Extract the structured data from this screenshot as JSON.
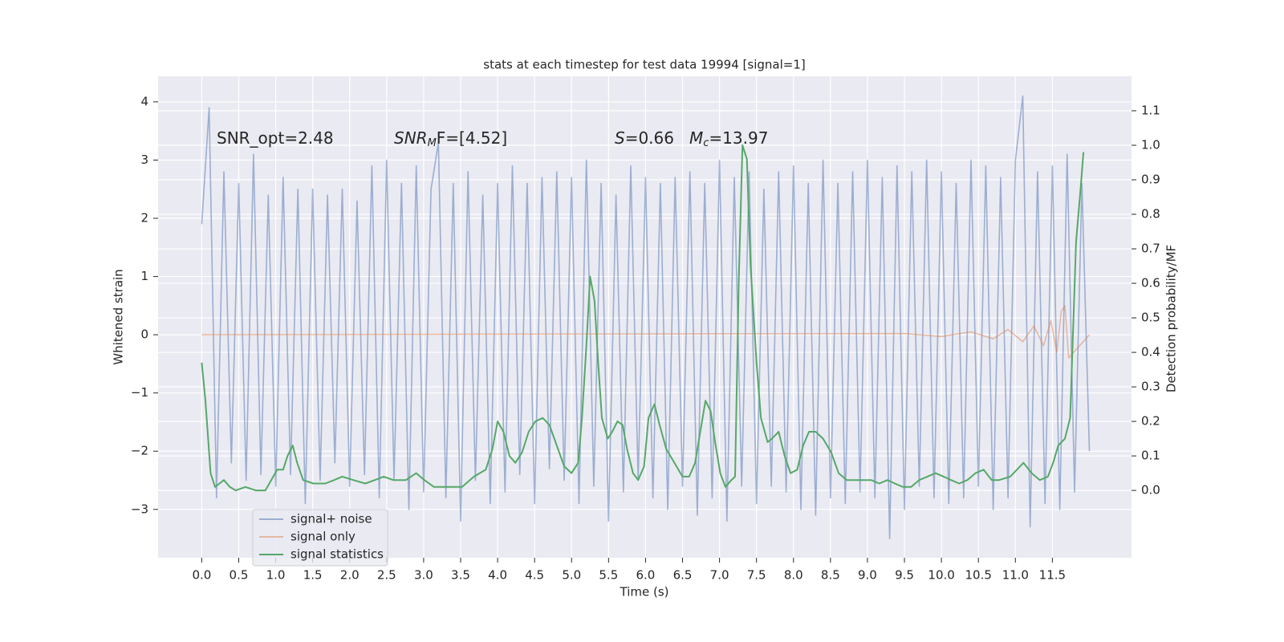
{
  "chart_data": {
    "type": "line",
    "title": "stats at each timestep for test data 19994 [signal=1]",
    "x_label": "Time (s)",
    "y_label": "Whitened strain",
    "y2_label": "Detection probability/MF",
    "annotations": [
      [
        "SNR_opt=2.48"
      ],
      [
        "SNR",
        "M",
        "F=[4.52]"
      ],
      [
        "S",
        "=0.66"
      ],
      [
        "M",
        "c",
        "=13.97"
      ]
    ],
    "xlim": [
      -0.59,
      12.57
    ],
    "ylim": [
      -3.83,
      4.44
    ],
    "y2lim": [
      -0.195,
      1.2
    ],
    "xticks": [
      {
        "value": 0,
        "label": "0.0"
      },
      0.5,
      {
        "value": 1,
        "label": "1.0"
      },
      1.5,
      {
        "value": 2,
        "label": "2.0"
      },
      2.5,
      {
        "value": 3,
        "label": "3.0"
      },
      3.5,
      {
        "value": 4,
        "label": "4.0"
      },
      4.5,
      {
        "value": 5,
        "label": "5.0"
      },
      5.5,
      {
        "value": 6,
        "label": "6.0"
      },
      6.5,
      {
        "value": 7,
        "label": "7.0"
      },
      7.5,
      {
        "value": 8,
        "label": "8.0"
      },
      8.5,
      {
        "value": 9,
        "label": "9.0"
      },
      9.5,
      {
        "value": 10,
        "label": "10.0"
      },
      10.5,
      {
        "value": 11,
        "label": "11.0"
      },
      11.5
    ],
    "yticks": [
      {
        "value": -3,
        "label": "−3"
      },
      {
        "value": -2,
        "label": "−2"
      },
      {
        "value": -1,
        "label": "−1"
      },
      0,
      1,
      2,
      3,
      4
    ],
    "y2ticks": [
      {
        "value": 0,
        "label": "0.0"
      },
      0.1,
      0.2,
      0.3,
      0.4,
      0.5,
      0.6,
      0.7,
      0.8,
      0.9,
      {
        "value": 1,
        "label": "1.0"
      },
      1.1
    ],
    "grid": true,
    "legend": "lower left",
    "series": [
      {
        "name": "signal+ noise",
        "color": "#4c72b0",
        "opacity": 0.5,
        "x": [
          0.0,
          0.1,
          0.2,
          0.3,
          0.4,
          0.5,
          0.6,
          0.7,
          0.8,
          0.9,
          1.0,
          1.1,
          1.2,
          1.3,
          1.4,
          1.5,
          1.6,
          1.7,
          1.8,
          1.9,
          2.0,
          2.1,
          2.2,
          2.3,
          2.4,
          2.5,
          2.6,
          2.7,
          2.8,
          2.9,
          3.0,
          3.1,
          3.2,
          3.3,
          3.4,
          3.5,
          3.6,
          3.7,
          3.8,
          3.9,
          4.0,
          4.1,
          4.2,
          4.3,
          4.4,
          4.5,
          4.6,
          4.7,
          4.8,
          4.9,
          5.0,
          5.1,
          5.2,
          5.3,
          5.4,
          5.5,
          5.6,
          5.7,
          5.8,
          5.9,
          6.0,
          6.1,
          6.2,
          6.3,
          6.4,
          6.5,
          6.6,
          6.7,
          6.8,
          6.9,
          7.0,
          7.1,
          7.2,
          7.3,
          7.4,
          7.5,
          7.6,
          7.7,
          7.8,
          7.9,
          8.0,
          8.1,
          8.2,
          8.3,
          8.4,
          8.5,
          8.6,
          8.7,
          8.8,
          8.9,
          9.0,
          9.1,
          9.2,
          9.3,
          9.4,
          9.5,
          9.6,
          9.7,
          9.8,
          9.9,
          10.0,
          10.1,
          10.2,
          10.3,
          10.4,
          10.5,
          10.6,
          10.7,
          10.8,
          10.9,
          11.0,
          11.1,
          11.2,
          11.3,
          11.4,
          11.5,
          11.6,
          11.7,
          11.8,
          11.9,
          12.0
        ],
        "values": [
          1.9,
          3.9,
          -2.8,
          2.8,
          -2.2,
          2.6,
          -2.5,
          3.1,
          -2.4,
          2.4,
          -2.6,
          2.7,
          -2.4,
          2.5,
          -2.9,
          2.5,
          -2.5,
          2.4,
          -2.2,
          2.5,
          -2.6,
          2.3,
          -2.4,
          2.9,
          -2.8,
          3.0,
          -2.5,
          2.6,
          -3.0,
          2.9,
          -2.7,
          2.5,
          3.3,
          -2.8,
          2.6,
          -3.2,
          2.8,
          -2.5,
          2.4,
          -2.9,
          2.6,
          -2.7,
          2.9,
          -2.4,
          2.6,
          -2.9,
          2.7,
          -2.3,
          2.8,
          -2.5,
          2.7,
          -2.9,
          3.0,
          -2.6,
          2.6,
          -3.2,
          2.4,
          -2.7,
          2.9,
          -2.5,
          2.7,
          -2.8,
          2.6,
          -3.0,
          2.7,
          -2.6,
          2.8,
          -3.1,
          2.6,
          -2.8,
          3.0,
          -3.2,
          2.7,
          -2.6,
          2.8,
          -2.9,
          2.5,
          -2.6,
          2.8,
          -2.7,
          2.9,
          -3.0,
          2.6,
          -3.1,
          3.0,
          -2.8,
          2.6,
          -2.9,
          2.8,
          -2.7,
          3.0,
          -2.8,
          2.7,
          -3.5,
          2.9,
          -3.0,
          2.8,
          -2.6,
          3.0,
          -2.8,
          2.8,
          -2.9,
          2.6,
          -2.8,
          3.0,
          -2.6,
          2.9,
          -3.0,
          2.7,
          -2.8,
          3.0,
          4.1,
          -3.3,
          2.8,
          -2.9,
          2.9,
          -3.0,
          3.1,
          -2.7,
          2.6,
          -2.0
        ]
      },
      {
        "name": "signal only",
        "color": "#dd8452",
        "opacity": 0.5,
        "x": [
          0.0,
          9.5,
          10.0,
          10.4,
          10.7,
          10.9,
          11.1,
          11.25,
          11.38,
          11.48,
          11.56,
          11.62,
          11.67,
          11.72,
          12.0
        ],
        "values": [
          0,
          0.02,
          -0.03,
          0.05,
          -0.07,
          0.09,
          -0.12,
          0.15,
          -0.19,
          0.24,
          -0.3,
          0.4,
          0.5,
          -0.4,
          0
        ]
      },
      {
        "name": "signal statistics",
        "color": "#55a868",
        "opacity": 1,
        "axis": "y2",
        "x": [
          0.0,
          0.05,
          0.12,
          0.18,
          0.24,
          0.3,
          0.38,
          0.46,
          0.59,
          0.73,
          0.86,
          0.94,
          1.02,
          1.1,
          1.16,
          1.23,
          1.29,
          1.37,
          1.51,
          1.67,
          1.79,
          1.9,
          2.05,
          2.21,
          2.34,
          2.46,
          2.59,
          2.76,
          2.9,
          3.01,
          3.14,
          3.35,
          3.52,
          3.68,
          3.84,
          3.93,
          4.0,
          4.08,
          4.16,
          4.24,
          4.33,
          4.42,
          4.51,
          4.61,
          4.7,
          4.8,
          4.9,
          5.0,
          5.09,
          5.14,
          5.2,
          5.25,
          5.31,
          5.36,
          5.41,
          5.49,
          5.55,
          5.62,
          5.69,
          5.75,
          5.83,
          5.9,
          5.98,
          6.04,
          6.12,
          6.19,
          6.28,
          6.39,
          6.5,
          6.59,
          6.67,
          6.74,
          6.81,
          6.88,
          6.94,
          7.01,
          7.08,
          7.16,
          7.21,
          7.26,
          7.31,
          7.37,
          7.42,
          7.5,
          7.56,
          7.65,
          7.71,
          7.8,
          7.88,
          7.96,
          8.05,
          8.13,
          8.21,
          8.3,
          8.4,
          8.51,
          8.61,
          8.72,
          8.83,
          8.94,
          9.05,
          9.16,
          9.27,
          9.37,
          9.48,
          9.59,
          9.7,
          9.81,
          9.92,
          10.03,
          10.13,
          10.24,
          10.35,
          10.46,
          10.57,
          10.68,
          10.78,
          10.93,
          11.11,
          11.22,
          11.33,
          11.44,
          11.51,
          11.58,
          11.67,
          11.74,
          11.82,
          11.88,
          11.92
        ],
        "values": [
          0.37,
          0.26,
          0.05,
          0.01,
          0.02,
          0.03,
          0.01,
          0.0,
          0.01,
          0.0,
          0.0,
          0.03,
          0.06,
          0.06,
          0.1,
          0.13,
          0.08,
          0.03,
          0.02,
          0.02,
          0.03,
          0.04,
          0.03,
          0.02,
          0.03,
          0.04,
          0.03,
          0.03,
          0.05,
          0.03,
          0.01,
          0.01,
          0.01,
          0.04,
          0.06,
          0.12,
          0.2,
          0.17,
          0.1,
          0.08,
          0.11,
          0.17,
          0.2,
          0.21,
          0.19,
          0.13,
          0.07,
          0.05,
          0.08,
          0.21,
          0.42,
          0.62,
          0.55,
          0.37,
          0.21,
          0.15,
          0.17,
          0.2,
          0.19,
          0.12,
          0.05,
          0.03,
          0.07,
          0.21,
          0.25,
          0.19,
          0.12,
          0.08,
          0.04,
          0.04,
          0.08,
          0.17,
          0.26,
          0.23,
          0.14,
          0.05,
          0.01,
          0.03,
          0.04,
          0.61,
          1.0,
          0.96,
          0.65,
          0.37,
          0.21,
          0.14,
          0.15,
          0.17,
          0.1,
          0.05,
          0.06,
          0.13,
          0.17,
          0.17,
          0.15,
          0.11,
          0.05,
          0.03,
          0.03,
          0.03,
          0.03,
          0.02,
          0.03,
          0.02,
          0.01,
          0.01,
          0.03,
          0.04,
          0.05,
          0.04,
          0.03,
          0.02,
          0.03,
          0.05,
          0.06,
          0.03,
          0.03,
          0.04,
          0.08,
          0.05,
          0.03,
          0.04,
          0.08,
          0.13,
          0.15,
          0.21,
          0.72,
          0.87,
          0.98
        ]
      }
    ]
  }
}
